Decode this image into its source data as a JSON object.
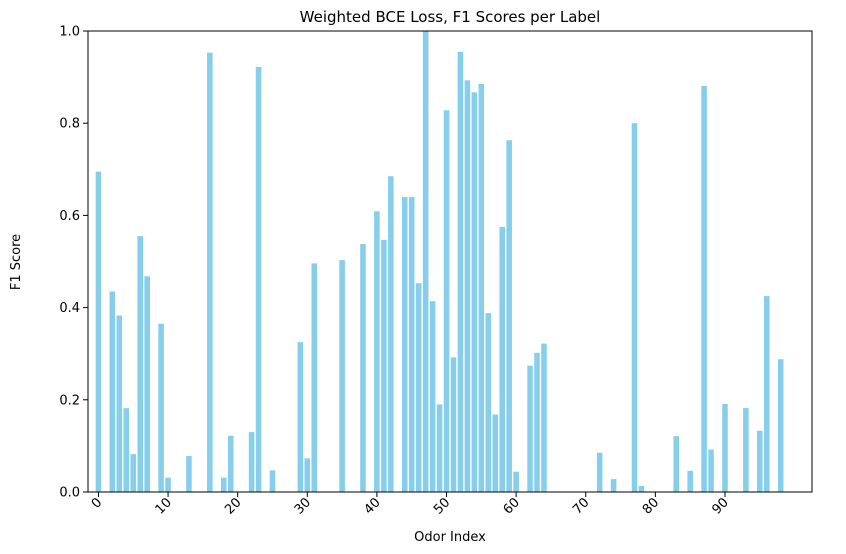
{
  "chart_data": {
    "type": "bar",
    "title": "Weighted BCE Loss, F1 Scores per Label",
    "xlabel": "Odor Index",
    "ylabel": "F1 Score",
    "ylim": [
      0,
      1
    ],
    "xlim": [
      -1.5,
      102.5
    ],
    "x_ticks": [
      0,
      10,
      20,
      30,
      40,
      50,
      60,
      70,
      80,
      90
    ],
    "y_ticks": [
      "0.0",
      "0.2",
      "0.4",
      "0.6",
      "0.8",
      "1.0"
    ],
    "x_tick_rotation_deg": 45,
    "grid": false,
    "bar_color": "#87ceeb",
    "x": [
      0,
      1,
      2,
      3,
      4,
      5,
      6,
      7,
      8,
      9,
      10,
      11,
      12,
      13,
      14,
      15,
      16,
      17,
      18,
      19,
      20,
      21,
      22,
      23,
      24,
      25,
      26,
      27,
      28,
      29,
      30,
      31,
      32,
      33,
      34,
      35,
      36,
      37,
      38,
      39,
      40,
      41,
      42,
      43,
      44,
      45,
      46,
      47,
      48,
      49,
      50,
      51,
      52,
      53,
      54,
      55,
      56,
      57,
      58,
      59,
      60,
      61,
      62,
      63,
      64,
      65,
      66,
      67,
      68,
      69,
      70,
      71,
      72,
      73,
      74,
      75,
      76,
      77,
      78,
      79,
      80,
      81,
      82,
      83,
      84,
      85,
      86,
      87,
      88,
      89,
      90,
      91,
      92,
      93,
      94,
      95,
      96,
      97,
      98
    ],
    "values": [
      0.695,
      0,
      0.435,
      0.383,
      0.182,
      0.082,
      0.555,
      0.468,
      0,
      0.365,
      0.031,
      0,
      0,
      0.078,
      0,
      0,
      0.953,
      0,
      0.031,
      0.122,
      0,
      0,
      0.13,
      0.922,
      0,
      0.047,
      0,
      0,
      0,
      0.325,
      0.073,
      0.496,
      0,
      0,
      0,
      0.503,
      0,
      0,
      0.538,
      0,
      0.609,
      0.547,
      0.685,
      0,
      0.64,
      0.64,
      0.453,
      1.0,
      0.414,
      0.19,
      0.828,
      0.292,
      0.955,
      0.893,
      0.867,
      0.885,
      0.388,
      0.168,
      0.575,
      0.763,
      0.044,
      0,
      0.274,
      0.302,
      0.322,
      0,
      0,
      0,
      0,
      0,
      0,
      0,
      0.085,
      0,
      0.028,
      0,
      0,
      0.8,
      0.013,
      0,
      0,
      0,
      0,
      0.121,
      0,
      0.046,
      0,
      0.881,
      0.092,
      0,
      0.191,
      0,
      0,
      0.182,
      0,
      0.133,
      0.425,
      0,
      0.288
    ]
  }
}
